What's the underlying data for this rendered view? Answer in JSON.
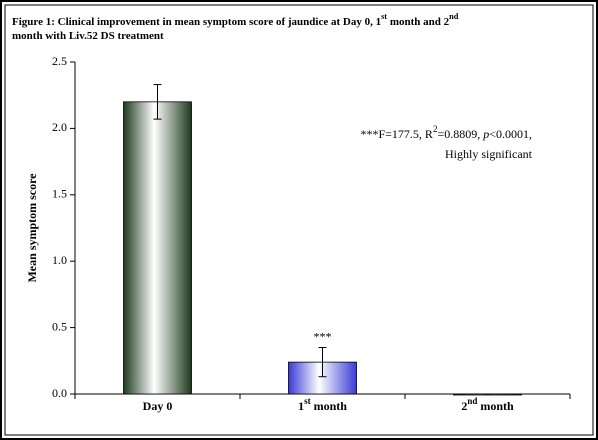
{
  "chart_data": {
    "type": "bar",
    "title": [
      {
        "text": "Figure 1: Clinical improvement in mean symptom score of jaundice at Day 0, 1"
      },
      {
        "text": "st",
        "style": "sup"
      },
      {
        "text": " month and 2"
      },
      {
        "text": "nd",
        "style": "sup"
      },
      {
        "text": " month with Liv.52 DS treatment"
      }
    ],
    "y_label": "Mean symptom score",
    "categories": [
      [
        {
          "text": "Day 0"
        }
      ],
      [
        {
          "text": "1"
        },
        {
          "text": "st",
          "style": "sup"
        },
        {
          "text": " month"
        }
      ],
      [
        {
          "text": "2"
        },
        {
          "text": "nd",
          "style": "sup"
        },
        {
          "text": " month"
        }
      ]
    ],
    "values": [
      2.2,
      0.24,
      0
    ],
    "errors": [
      0.13,
      0.11,
      0
    ],
    "bar_labels": [
      null,
      "***",
      null
    ],
    "colors": [
      "#1e3a1e",
      "#3a3ad8",
      "#333333"
    ],
    "ylim": [
      0,
      2.5
    ],
    "yticks": [
      {
        "value": 0,
        "label": "0.0"
      },
      0.5,
      {
        "value": 1,
        "label": "1.0"
      },
      1.5,
      {
        "value": 2,
        "label": "2.0"
      },
      2.5
    ],
    "grid": false,
    "annotation": [
      [
        {
          "text": "***F=177.5, R"
        },
        {
          "text": "2",
          "style": "sup"
        },
        {
          "text": "=0.8809, "
        },
        {
          "text": "p",
          "style": "italic"
        },
        {
          "text": "<0.0001,"
        }
      ],
      [
        {
          "text": "Highly significant"
        }
      ]
    ]
  }
}
